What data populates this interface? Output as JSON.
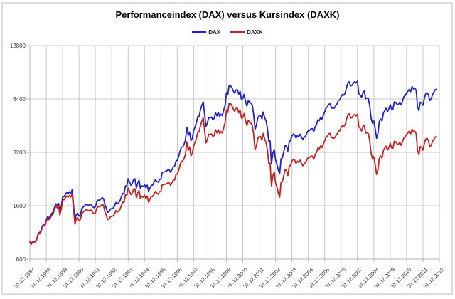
{
  "frame": {
    "border_color": "#dcdcdc",
    "background": "#ffffff"
  },
  "chart_data": {
    "type": "line",
    "title": "Performanceindex (DAX) versus Kursindex (DAXK)",
    "xlabel": "",
    "ylabel": "",
    "y_scale": "log2",
    "ylim": [
      800,
      12800
    ],
    "y_ticks": [
      800,
      1600,
      3200,
      6400,
      12800
    ],
    "y_tick_labels": [
      "800",
      "1600",
      "3200",
      "6400",
      "12800"
    ],
    "x_tick_labels": [
      "31.12.1987",
      "31.12.1988",
      "31.12.1989",
      "31.12.1990",
      "31.12.1991",
      "31.12.1992",
      "31.12.1993",
      "31.12.1994",
      "31.12.1995",
      "31.12.1996",
      "31.12.1997",
      "31.12.1998",
      "31.12.1999",
      "31.12.2000",
      "31.12.2001",
      "31.12.2002",
      "31.12.2003",
      "31.12.2004",
      "31.12.2005",
      "31.12.2006",
      "31.12.2007",
      "31.12.2008",
      "31.12.2009",
      "31.12.2010",
      "31.12.2011",
      "31.12.2012"
    ],
    "x_interval": "monthly",
    "x_start": "31.12.1987",
    "grid": "on",
    "grid_color": "#c9c9c9",
    "axis_color": "#b4b4b4",
    "tick_label_color": "#3a3a3a",
    "legend_position": "top-center",
    "legend": [
      {
        "name": "DAX",
        "color": "#2222c4"
      },
      {
        "name": "DAXK",
        "color": "#c42222"
      }
    ],
    "series": [
      {
        "name": "DAX",
        "color": "#2222c4",
        "values": [
          1000,
          970,
          1010,
          995,
          1010,
          1035,
          1110,
          1130,
          1150,
          1220,
          1260,
          1250,
          1327,
          1390,
          1365,
          1400,
          1450,
          1475,
          1560,
          1640,
          1610,
          1650,
          1470,
          1590,
          1790,
          1800,
          1850,
          1900,
          1870,
          1920,
          1880,
          1968,
          1620,
          1330,
          1430,
          1450,
          1398,
          1420,
          1540,
          1570,
          1600,
          1630,
          1620,
          1610,
          1620,
          1630,
          1580,
          1560,
          1578,
          1680,
          1720,
          1720,
          1740,
          1780,
          1750,
          1620,
          1550,
          1470,
          1480,
          1530,
          1545,
          1550,
          1590,
          1670,
          1640,
          1660,
          1700,
          1790,
          1880,
          1870,
          2070,
          2060,
          2267,
          2180,
          2090,
          2130,
          2250,
          2270,
          2020,
          2150,
          2230,
          2010,
          2070,
          2050,
          2107,
          2020,
          2090,
          1930,
          2020,
          2090,
          2090,
          2180,
          2240,
          2190,
          2170,
          2250,
          2254,
          2470,
          2480,
          2490,
          2510,
          2540,
          2560,
          2470,
          2550,
          2650,
          2660,
          2850,
          2889,
          3030,
          3250,
          3420,
          3440,
          3560,
          3770,
          4438,
          3990,
          4170,
          3720,
          3840,
          4250,
          4440,
          4700,
          5100,
          5110,
          5570,
          5900,
          6171,
          5250,
          4470,
          4670,
          5020,
          5002,
          5060,
          4900,
          4970,
          5360,
          5140,
          5380,
          5110,
          5250,
          5150,
          5520,
          5900,
          6958,
          6750,
          7640,
          7599,
          7415,
          7110,
          6900,
          7190,
          7216,
          6798,
          7077,
          6372,
          6434,
          6795,
          6208,
          5830,
          6265,
          6123,
          6058,
          5861,
          5188,
          4308,
          4559,
          5015,
          5160,
          5153,
          4946,
          5397,
          5041,
          4818,
          4383,
          3701,
          3712,
          2769,
          3152,
          3320,
          2893,
          2748,
          2547,
          2424,
          2942,
          2982,
          3221,
          3488,
          3484,
          3257,
          3655,
          3746,
          3965,
          4058,
          4018,
          3857,
          3985,
          3921,
          4053,
          3896,
          3785,
          3893,
          3960,
          4126,
          4256,
          4254,
          4350,
          4348,
          4184,
          4460,
          4586,
          4886,
          4830,
          5044,
          4929,
          5193,
          5408,
          5674,
          5796,
          5970,
          6009,
          5692,
          5683,
          5682,
          5859,
          6004,
          6269,
          6309,
          6597,
          6789,
          6715,
          6917,
          7409,
          7883,
          8007,
          7584,
          7638,
          7861,
          8019,
          7870,
          8067,
          6851,
          6748,
          6535,
          6948,
          7097,
          6418,
          6480,
          6422,
          5831,
          4987,
          4669,
          4810,
          4338,
          3843,
          4085,
          4769,
          4940,
          4809,
          5332,
          5517,
          5675,
          5415,
          5626,
          5957,
          5609,
          5598,
          6154,
          6136,
          5964,
          5966,
          6148,
          5925,
          6229,
          6601,
          6688,
          6914,
          7077,
          7272,
          7041,
          7514,
          7293,
          7376,
          7159,
          5785,
          5502,
          6141,
          6088,
          5898,
          6459,
          6856,
          6947,
          6761,
          6264,
          6416,
          6772,
          6971,
          7216,
          7260
        ]
      },
      {
        "name": "DAXK",
        "color": "#c42222",
        "values": [
          1000,
          968,
          1007,
          990,
          1003,
          1027,
          1099,
          1117,
          1135,
          1202,
          1239,
          1228,
          1301,
          1360,
          1334,
          1366,
          1412,
          1434,
          1515,
          1590,
          1558,
          1594,
          1418,
          1531,
          1721,
          1728,
          1773,
          1817,
          1786,
          1830,
          1789,
          1869,
          1536,
          1259,
          1351,
          1368,
          1316,
          1335,
          1446,
          1472,
          1498,
          1524,
          1512,
          1500,
          1507,
          1513,
          1464,
          1443,
          1457,
          1549,
          1583,
          1580,
          1596,
          1630,
          1600,
          1478,
          1412,
          1337,
          1344,
          1387,
          1398,
          1400,
          1434,
          1504,
          1474,
          1490,
          1523,
          1601,
          1679,
          1667,
          1843,
          1831,
          2012,
          1931,
          1848,
          1881,
          1984,
          1998,
          1775,
          1886,
          1953,
          1758,
          1807,
          1787,
          1834,
          1755,
          1813,
          1671,
          1746,
          1804,
          1801,
          1875,
          1924,
          1878,
          1858,
          1923,
          1923,
          2104,
          2109,
          2114,
          2128,
          2150,
          2163,
          2084,
          2148,
          2228,
          2233,
          2389,
          2418,
          2531,
          2711,
          2848,
          2860,
          2954,
          3123,
          3671,
          3295,
          3438,
          3062,
          3156,
          3486,
          3636,
          3843,
          4163,
          4165,
          4532,
          4793,
          5005,
          4251,
          3614,
          3769,
          4045,
          4024,
          4067,
          3935,
          3988,
          4297,
          4117,
          4306,
          4086,
          4194,
          4111,
          4403,
          4702,
          5540,
          5366,
          6063,
          6021,
          5866,
          5616,
          5442,
          5661,
          5673,
          5336,
          5546,
          4986,
          5027,
          5298,
          4831,
          4528,
          4857,
          4737,
          4678,
          4517,
          3991,
          3307,
          3494,
          3836,
          3939,
          3925,
          3759,
          4092,
          3814,
          3637,
          3302,
          2782,
          2784,
          2072,
          2354,
          2474,
          2151,
          2038,
          1884,
          1789,
          2166,
          2190,
          2360,
          2549,
          2540,
          2369,
          2652,
          2711,
          2863,
          2924,
          2889,
          2767,
          2853,
          2802,
          2890,
          2772,
          2688,
          2758,
          2800,
          2912,
          2997,
          2990,
          3051,
          3043,
          2922,
          3109,
          3190,
          3392,
          3346,
          3488,
          3401,
          3576,
          3717,
          3891,
          3965,
          4075,
          4092,
          3868,
          3853,
          3844,
          3954,
          4043,
          4212,
          4229,
          4413,
          4531,
          4472,
          4596,
          4912,
          5214,
          5285,
          4995,
          5019,
          5155,
          5247,
          5138,
          5255,
          4450,
          4370,
          4219,
          4473,
          4555,
          4108,
          4135,
          4086,
          3699,
          3155,
          2945,
          3025,
          2720,
          2402,
          2545,
          2962,
          3059,
          2969,
          3281,
          3385,
          3471,
          3302,
          3420,
          3610,
          3389,
          3372,
          3696,
          3674,
          3561,
          3551,
          3649,
          3506,
          3675,
          3883,
          3923,
          4043,
          4123,
          4220,
          4070,
          4327,
          4184,
          4215,
          4075,
          3281,
          3108,
          3456,
          3414,
          3295,
          3595,
          3803,
          3840,
          3725,
          3439,
          3511,
          3693,
          3789,
          3908,
          3919
        ]
      }
    ]
  }
}
